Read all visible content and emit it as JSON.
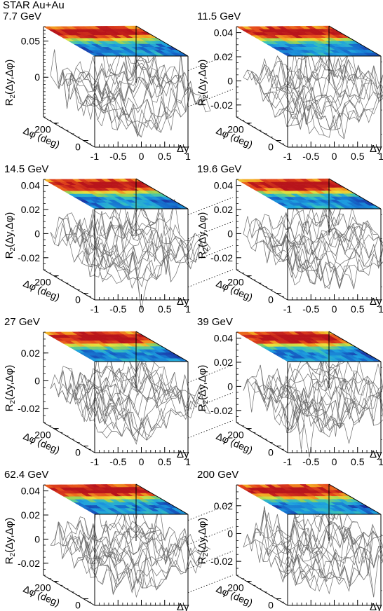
{
  "figure": {
    "header": "STAR Au+Au"
  },
  "chart_data": [
    {
      "type": "surface",
      "energy": "7.7 GeV",
      "zlabel": "R2(Δy,Δφ)",
      "xlabel": "Δy",
      "ylabel": "Δφ (deg)",
      "x_ticks": [
        "-1",
        "-0.5",
        "0",
        "0.5",
        "1"
      ],
      "y_ticks": [
        "0",
        "200"
      ],
      "z_ticks": [
        "0",
        "0.05"
      ],
      "zlim": [
        -0.055,
        0.07
      ]
    },
    {
      "type": "surface",
      "energy": "11.5 GeV",
      "zlabel": "R2(Δy,Δφ)",
      "xlabel": "Δy",
      "ylabel": "Δφ (deg)",
      "x_ticks": [
        "-1",
        "-0.5",
        "0",
        "0.5",
        "1"
      ],
      "y_ticks": [
        "0",
        "200"
      ],
      "z_ticks": [
        "-0.02",
        "0",
        "0.02",
        "0.04"
      ],
      "zlim": [
        -0.03,
        0.045
      ]
    },
    {
      "type": "surface",
      "energy": "14.5 GeV",
      "zlabel": "R2(Δy,Δφ)",
      "xlabel": "Δy",
      "ylabel": "Δφ (deg)",
      "x_ticks": [
        "-1",
        "-0.5",
        "0",
        "0.5",
        "1"
      ],
      "y_ticks": [
        "0",
        "200"
      ],
      "z_ticks": [
        "-0.02",
        "0",
        "0.02",
        "0.04"
      ],
      "zlim": [
        -0.03,
        0.045
      ]
    },
    {
      "type": "surface",
      "energy": "19.6 GeV",
      "zlabel": "R2(Δy,Δφ)",
      "xlabel": "Δy",
      "ylabel": "Δφ (deg)",
      "x_ticks": [
        "-1",
        "-0.5",
        "0",
        "0.5",
        "1"
      ],
      "y_ticks": [
        "0",
        "200"
      ],
      "z_ticks": [
        "-0.02",
        "0",
        "0.02",
        "0.04"
      ],
      "zlim": [
        -0.03,
        0.045
      ]
    },
    {
      "type": "surface",
      "energy": "27 GeV",
      "zlabel": "R2(Δy,Δφ)",
      "xlabel": "Δy",
      "ylabel": "Δφ (deg)",
      "x_ticks": [
        "-1",
        "-0.5",
        "0",
        "0.5",
        "1"
      ],
      "y_ticks": [
        "0",
        "200"
      ],
      "z_ticks": [
        "-0.02",
        "0",
        "0.02"
      ],
      "zlim": [
        -0.03,
        0.035
      ]
    },
    {
      "type": "surface",
      "energy": "39 GeV",
      "zlabel": "R2(Δy,Δφ)",
      "xlabel": "Δy",
      "ylabel": "Δφ (deg)",
      "x_ticks": [
        "-1",
        "-0.5",
        "0",
        "0.5",
        "1"
      ],
      "y_ticks": [
        "0",
        "200"
      ],
      "z_ticks": [
        "-0.02",
        "0",
        "0.02",
        "0.04"
      ],
      "zlim": [
        -0.03,
        0.045
      ]
    },
    {
      "type": "surface",
      "energy": "62.4 GeV",
      "zlabel": "R2(Δy,Δφ)",
      "xlabel": "Δy",
      "ylabel": "Δφ (deg)",
      "x_ticks": [
        "-1",
        "-0.5",
        "0",
        "0.5",
        "1"
      ],
      "y_ticks": [
        "0",
        "200"
      ],
      "z_ticks": [
        "-0.02",
        "0",
        "0.02",
        "0.04"
      ],
      "zlim": [
        -0.03,
        0.045
      ]
    },
    {
      "type": "surface",
      "energy": "200 GeV",
      "zlabel": "R2(Δy,Δφ)",
      "xlabel": "Δy",
      "ylabel": "Δφ (deg)",
      "x_ticks": [
        "-1",
        "-0.5",
        "0",
        "0.5",
        "1"
      ],
      "y_ticks": [
        "0",
        "200"
      ],
      "z_ticks": [
        "-0.02",
        "0",
        "0.02"
      ],
      "zlim": [
        -0.03,
        0.035
      ]
    }
  ],
  "colors": {
    "mesh": "#6e6e6e",
    "axis": "#000000",
    "palette": [
      "#1a2fa0",
      "#1565c8",
      "#1d9fe0",
      "#39c3b8",
      "#8fd05a",
      "#e8e23c",
      "#f4a020",
      "#e4471b",
      "#b8141b"
    ]
  }
}
